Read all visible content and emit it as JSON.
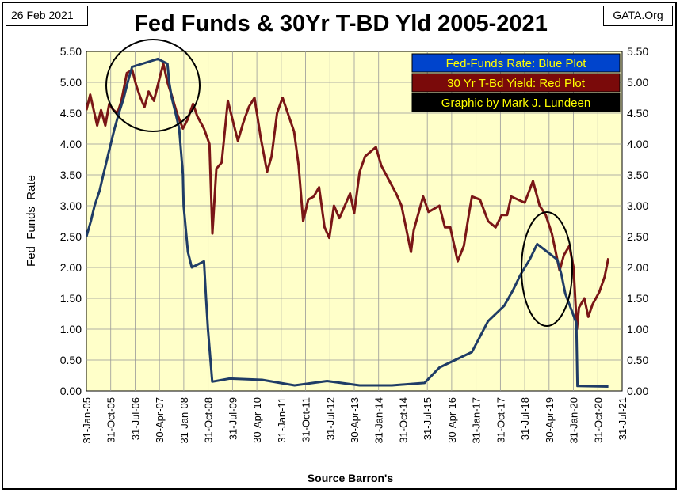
{
  "header": {
    "date": "26 Feb 2021",
    "brand": "GATA.Org"
  },
  "colors": {
    "plot_bg": "#ffffc9",
    "fed_funds": "#1f3c66",
    "t_bond": "#7a1616",
    "legend_blue": "#0044cc",
    "legend_red": "#7a0a0a",
    "legend_black": "#000000",
    "legend_text": "#ffff00"
  },
  "chart_data": {
    "type": "line",
    "title": "Fed Funds & 30Yr T-BD Yld 2005-2021",
    "xlabel": "Source Barron's",
    "ylabel": "Fed  Funds  Rate",
    "ylim": [
      0,
      5.5
    ],
    "yticks": [
      "0.00",
      "0.50",
      "1.00",
      "1.50",
      "2.00",
      "2.50",
      "3.00",
      "3.50",
      "4.00",
      "4.50",
      "5.00",
      "5.50"
    ],
    "xticks": [
      "31-Jan-05",
      "31-Oct-05",
      "31-Jul-06",
      "30-Apr-07",
      "31-Jan-08",
      "31-Oct-08",
      "31-Jul-09",
      "30-Apr-10",
      "31-Jan-11",
      "31-Oct-11",
      "31-Jul-12",
      "30-Apr-13",
      "31-Jan-14",
      "31-Oct-14",
      "31-Jul-15",
      "30-Apr-16",
      "31-Jan-17",
      "31-Oct-17",
      "31-Jul-18",
      "30-Apr-19",
      "31-Jan-20",
      "31-Oct-20",
      "31-Jul-21"
    ],
    "x_range": [
      "2005-01-31",
      "2021-07-31"
    ],
    "grid": true,
    "legend_position": "top-right",
    "legend": [
      "Fed-Funds Rate: Blue Plot",
      "30 Yr T-Bd Yield: Red Plot",
      "Graphic by Mark J. Lundeen"
    ],
    "series": [
      {
        "name": "Fed-Funds Rate: Blue Plot",
        "points": [
          [
            "2005-01-31",
            2.5
          ],
          [
            "2005-03-22",
            2.75
          ],
          [
            "2005-05-03",
            3.0
          ],
          [
            "2005-06-30",
            3.25
          ],
          [
            "2005-08-09",
            3.5
          ],
          [
            "2005-09-20",
            3.75
          ],
          [
            "2005-11-01",
            4.0
          ],
          [
            "2005-12-13",
            4.25
          ],
          [
            "2006-01-31",
            4.5
          ],
          [
            "2006-03-28",
            4.75
          ],
          [
            "2006-05-10",
            5.0
          ],
          [
            "2006-06-29",
            5.25
          ],
          [
            "2007-04-15",
            5.38
          ],
          [
            "2007-08-01",
            5.3
          ],
          [
            "2007-08-20",
            5.0
          ],
          [
            "2007-09-18",
            4.75
          ],
          [
            "2007-10-31",
            4.5
          ],
          [
            "2007-12-11",
            4.25
          ],
          [
            "2008-01-22",
            3.5
          ],
          [
            "2008-01-30",
            3.0
          ],
          [
            "2008-03-18",
            2.25
          ],
          [
            "2008-04-30",
            2.0
          ],
          [
            "2008-09-15",
            2.1
          ],
          [
            "2008-10-08",
            1.5
          ],
          [
            "2008-10-29",
            1.0
          ],
          [
            "2008-12-16",
            0.15
          ],
          [
            "2009-06-30",
            0.2
          ],
          [
            "2010-06-30",
            0.18
          ],
          [
            "2011-06-30",
            0.09
          ],
          [
            "2012-06-30",
            0.16
          ],
          [
            "2013-06-30",
            0.09
          ],
          [
            "2014-06-30",
            0.09
          ],
          [
            "2015-06-30",
            0.13
          ],
          [
            "2015-12-16",
            0.38
          ],
          [
            "2016-12-14",
            0.63
          ],
          [
            "2017-03-15",
            0.88
          ],
          [
            "2017-06-14",
            1.13
          ],
          [
            "2017-12-13",
            1.38
          ],
          [
            "2018-03-21",
            1.63
          ],
          [
            "2018-06-13",
            1.88
          ],
          [
            "2018-09-26",
            2.13
          ],
          [
            "2018-12-19",
            2.38
          ],
          [
            "2019-07-31",
            2.13
          ],
          [
            "2019-09-18",
            1.88
          ],
          [
            "2019-10-30",
            1.58
          ],
          [
            "2020-03-03",
            1.1
          ],
          [
            "2020-03-15",
            0.08
          ],
          [
            "2021-02-26",
            0.07
          ]
        ]
      },
      {
        "name": "30 Yr T-Bd Yield: Red Plot",
        "points": [
          [
            "2005-01-31",
            4.55
          ],
          [
            "2005-03-15",
            4.8
          ],
          [
            "2005-06-01",
            4.3
          ],
          [
            "2005-07-15",
            4.55
          ],
          [
            "2005-09-01",
            4.3
          ],
          [
            "2005-10-15",
            4.65
          ],
          [
            "2005-12-01",
            4.55
          ],
          [
            "2006-01-15",
            4.5
          ],
          [
            "2006-03-01",
            4.7
          ],
          [
            "2006-05-01",
            5.15
          ],
          [
            "2006-06-30",
            5.2
          ],
          [
            "2006-08-15",
            4.95
          ],
          [
            "2006-10-01",
            4.75
          ],
          [
            "2006-11-15",
            4.6
          ],
          [
            "2007-01-01",
            4.85
          ],
          [
            "2007-03-01",
            4.7
          ],
          [
            "2007-05-01",
            5.05
          ],
          [
            "2007-06-15",
            5.3
          ],
          [
            "2007-08-01",
            5.0
          ],
          [
            "2007-09-15",
            4.8
          ],
          [
            "2007-11-15",
            4.5
          ],
          [
            "2008-01-22",
            4.25
          ],
          [
            "2008-03-15",
            4.4
          ],
          [
            "2008-05-15",
            4.65
          ],
          [
            "2008-07-01",
            4.45
          ],
          [
            "2008-09-15",
            4.25
          ],
          [
            "2008-11-15",
            4.0
          ],
          [
            "2008-12-18",
            2.55
          ],
          [
            "2009-02-01",
            3.6
          ],
          [
            "2009-04-01",
            3.7
          ],
          [
            "2009-06-10",
            4.7
          ],
          [
            "2009-08-01",
            4.4
          ],
          [
            "2009-10-01",
            4.05
          ],
          [
            "2009-12-01",
            4.35
          ],
          [
            "2010-02-01",
            4.6
          ],
          [
            "2010-04-05",
            4.75
          ],
          [
            "2010-06-15",
            4.1
          ],
          [
            "2010-08-25",
            3.55
          ],
          [
            "2010-10-15",
            3.8
          ],
          [
            "2010-12-15",
            4.5
          ],
          [
            "2011-02-15",
            4.75
          ],
          [
            "2011-04-15",
            4.5
          ],
          [
            "2011-06-25",
            4.2
          ],
          [
            "2011-08-15",
            3.65
          ],
          [
            "2011-10-05",
            2.75
          ],
          [
            "2011-12-01",
            3.1
          ],
          [
            "2012-02-01",
            3.15
          ],
          [
            "2012-04-01",
            3.3
          ],
          [
            "2012-06-01",
            2.65
          ],
          [
            "2012-07-25",
            2.48
          ],
          [
            "2012-09-15",
            3.0
          ],
          [
            "2012-11-15",
            2.8
          ],
          [
            "2013-01-15",
            3.0
          ],
          [
            "2013-03-15",
            3.2
          ],
          [
            "2013-05-01",
            2.88
          ],
          [
            "2013-07-01",
            3.55
          ],
          [
            "2013-09-01",
            3.8
          ],
          [
            "2013-12-31",
            3.95
          ],
          [
            "2014-03-01",
            3.65
          ],
          [
            "2014-06-01",
            3.4
          ],
          [
            "2014-08-15",
            3.2
          ],
          [
            "2014-10-15",
            3.0
          ],
          [
            "2015-01-30",
            2.25
          ],
          [
            "2015-03-01",
            2.6
          ],
          [
            "2015-06-15",
            3.15
          ],
          [
            "2015-08-15",
            2.9
          ],
          [
            "2015-10-15",
            2.95
          ],
          [
            "2015-12-15",
            3.0
          ],
          [
            "2016-02-15",
            2.65
          ],
          [
            "2016-04-15",
            2.65
          ],
          [
            "2016-07-08",
            2.1
          ],
          [
            "2016-09-15",
            2.35
          ],
          [
            "2016-11-15",
            2.9
          ],
          [
            "2016-12-15",
            3.15
          ],
          [
            "2017-03-15",
            3.1
          ],
          [
            "2017-06-15",
            2.75
          ],
          [
            "2017-09-07",
            2.65
          ],
          [
            "2017-11-15",
            2.85
          ],
          [
            "2018-01-15",
            2.85
          ],
          [
            "2018-03-01",
            3.15
          ],
          [
            "2018-05-15",
            3.1
          ],
          [
            "2018-08-01",
            3.05
          ],
          [
            "2018-11-01",
            3.4
          ],
          [
            "2019-01-15",
            3.0
          ],
          [
            "2019-03-25",
            2.85
          ],
          [
            "2019-06-01",
            2.55
          ],
          [
            "2019-08-28",
            1.95
          ],
          [
            "2019-10-15",
            2.2
          ],
          [
            "2019-12-15",
            2.35
          ],
          [
            "2020-02-01",
            2.0
          ],
          [
            "2020-03-09",
            1.0
          ],
          [
            "2020-04-01",
            1.35
          ],
          [
            "2020-06-01",
            1.5
          ],
          [
            "2020-07-15",
            1.2
          ],
          [
            "2020-09-01",
            1.4
          ],
          [
            "2020-11-15",
            1.6
          ],
          [
            "2021-01-15",
            1.85
          ],
          [
            "2021-02-26",
            2.15
          ]
        ]
      }
    ]
  }
}
